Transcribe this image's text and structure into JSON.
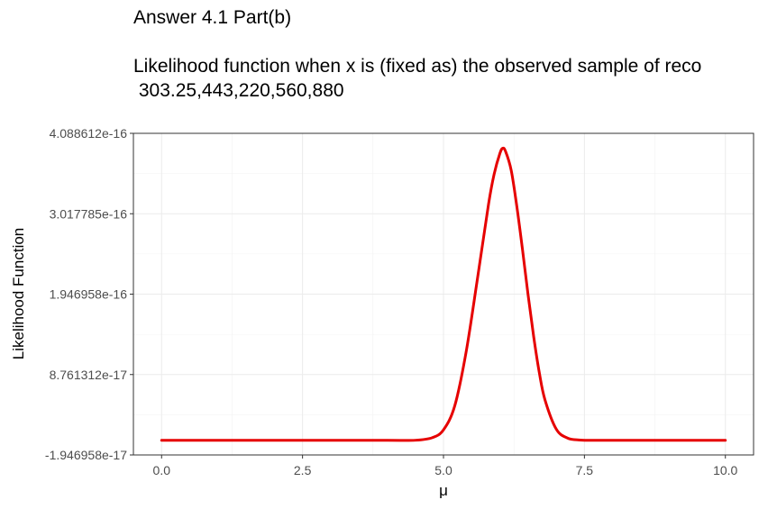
{
  "chart_data": {
    "type": "line",
    "title": "Answer 4.1 Part(b)",
    "subtitle": "Likelihood function when x is (fixed as) the observed sample of reco\n 303.25,443,220,560,880",
    "xlabel": "μ",
    "ylabel": "Likelihood Function",
    "xlim": [
      -0.5,
      10.5
    ],
    "ylim": [
      -1.946958e-17,
      4.088612e-16
    ],
    "x_ticks": [
      0,
      2.5,
      5,
      7.5,
      10
    ],
    "x_tick_labels": [
      "0.0",
      "2.5",
      "5.0",
      "7.5",
      "10.0"
    ],
    "y_ticks": [
      -1.946958e-17,
      8.761312e-17,
      1.946958e-16,
      3.017785e-16,
      4.088612e-16
    ],
    "y_tick_labels": [
      "-1.946958e-17",
      "8.761312e-17",
      "1.946958e-16",
      "3.017785e-16",
      "4.088612e-16"
    ],
    "grid": true,
    "series": [
      {
        "color": "#e60000",
        "x": [
          0,
          1,
          2,
          3,
          4,
          4.5,
          4.8,
          5.0,
          5.2,
          5.4,
          5.6,
          5.8,
          5.9,
          6.0,
          6.05,
          6.1,
          6.2,
          6.3,
          6.4,
          6.5,
          6.6,
          6.7,
          6.8,
          7.0,
          7.2,
          7.4,
          7.6,
          8,
          9,
          10
        ],
        "y": [
          0,
          0,
          0,
          0,
          0,
          1e-19,
          3.5e-18,
          1.4e-17,
          4.6e-17,
          1.17e-16,
          2.14e-16,
          3.15e-16,
          3.55e-16,
          3.82e-16,
          3.89e-16,
          3.85e-16,
          3.6e-16,
          3.12e-16,
          2.55e-16,
          1.94e-16,
          1.38e-16,
          9e-17,
          5.4e-17,
          1.5e-17,
          3e-18,
          5e-19,
          0,
          0,
          0,
          0
        ]
      }
    ]
  }
}
